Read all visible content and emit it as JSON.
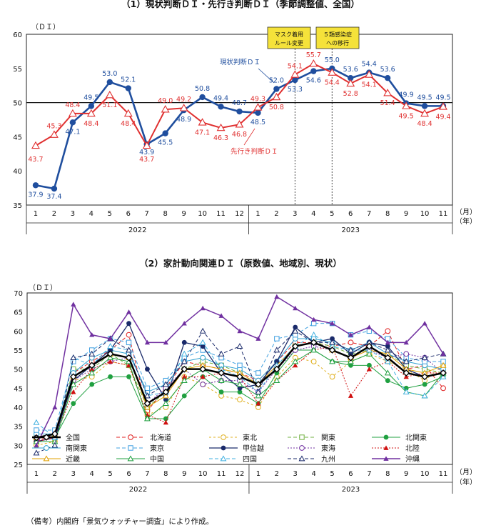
{
  "note": "（備考）内閣府「景気ウォッチャー調査」により作成。",
  "chart_data": [
    {
      "type": "line",
      "title": "（1）現状判断ＤＩ・先行き判断ＤＩ（季節調整値、全国）",
      "ylabel": "（ＤＩ）",
      "ylim": [
        35,
        60
      ],
      "yticks": [
        "35",
        "40",
        "45",
        "50",
        "55",
        "60"
      ],
      "baseline": 50,
      "categories": [
        "1",
        "2",
        "3",
        "4",
        "5",
        "6",
        "7",
        "8",
        "9",
        "10",
        "11",
        "12",
        "1",
        "2",
        "3",
        "4",
        "5",
        "6",
        "7",
        "8",
        "9",
        "10",
        "11"
      ],
      "month_unit": "（月）",
      "year_unit": "（年）",
      "years": [
        "2022",
        "2023"
      ],
      "annotations": [
        "マスク着用",
        "ルール変更",
        "５類感染症",
        "への移行"
      ],
      "series": [
        {
          "name": "現状判断ＤＩ",
          "color": "#1f4e9e",
          "values": [
            37.9,
            37.4,
            47.1,
            49.5,
            53.0,
            52.1,
            43.9,
            45.5,
            48.9,
            50.8,
            49.4,
            48.7,
            48.5,
            52.0,
            53.3,
            54.6,
            55.0,
            53.6,
            54.4,
            53.6,
            49.9,
            49.5,
            49.5
          ],
          "labels": [
            "37.9",
            "37.4",
            "47.1",
            "49.5",
            "53.0",
            "52.1",
            "43.9",
            "45.5",
            "48.9",
            "50.8",
            "49.4",
            "48.7",
            "48.5",
            "52.0",
            "53.3",
            "54.6",
            "55.0",
            "53.6",
            "54.4",
            "53.6",
            "49.9",
            "49.5",
            "49.5"
          ]
        },
        {
          "name": "先行き判断ＤＩ",
          "color": "#e03030",
          "values": [
            43.7,
            45.3,
            48.4,
            48.4,
            51.1,
            48.4,
            43.7,
            49.0,
            49.2,
            47.1,
            46.3,
            46.8,
            49.3,
            50.8,
            54.1,
            55.7,
            54.4,
            52.8,
            54.1,
            51.4,
            49.5,
            48.4,
            49.4
          ],
          "labels": [
            "43.7",
            "45.3",
            "48.4",
            "48.4",
            "51.1",
            "48.4",
            "43.7",
            "49.0",
            "49.2",
            "47.1",
            "46.3",
            "46.8",
            "49.3",
            "50.8",
            "54.1",
            "55.7",
            "54.4",
            "52.8",
            "54.1",
            "51.4",
            "49.5",
            "48.4",
            "49.4"
          ]
        }
      ]
    },
    {
      "type": "line",
      "title": "（2）家計動向関連ＤＩ（原数値、地域別、現状）",
      "ylabel": "（ＤＩ）",
      "ylim": [
        25,
        70
      ],
      "yticks": [
        "25",
        "30",
        "35",
        "40",
        "45",
        "50",
        "55",
        "60",
        "65",
        "70"
      ],
      "categories": [
        "1",
        "2",
        "3",
        "4",
        "5",
        "6",
        "7",
        "8",
        "9",
        "10",
        "11",
        "12",
        "1",
        "2",
        "3",
        "4",
        "5",
        "6",
        "7",
        "8",
        "9",
        "10",
        "11"
      ],
      "month_unit": "（月）",
      "year_unit": "（年）",
      "years": [
        "2022",
        "2023"
      ],
      "series": [
        {
          "name": "全国",
          "color": "#000000",
          "dash": "",
          "marker": "diamond",
          "width": 2.5,
          "values": [
            32,
            33,
            48,
            51,
            54,
            53,
            41,
            44,
            50,
            50,
            49,
            48,
            46,
            50,
            56,
            57,
            55,
            53,
            56,
            53,
            49,
            48,
            49
          ]
        },
        {
          "name": "北海道",
          "color": "#e02020",
          "dash": "5,3",
          "marker": "circle-open",
          "width": 1,
          "values": [
            31,
            33,
            49,
            52,
            55,
            59,
            39,
            45,
            52,
            51,
            50,
            49,
            47,
            52,
            57,
            57,
            56,
            57,
            56,
            60,
            50,
            51,
            45
          ]
        },
        {
          "name": "東北",
          "color": "#e0b020",
          "dash": "3,3",
          "marker": "circle-open",
          "width": 1,
          "values": [
            30,
            31,
            47,
            48,
            52,
            51,
            38,
            40,
            48,
            46,
            43,
            42,
            40,
            48,
            53,
            52,
            48,
            52,
            54,
            52,
            50,
            47,
            51
          ]
        },
        {
          "name": "関東",
          "color": "#70b040",
          "dash": "5,3",
          "marker": "square-open",
          "width": 1,
          "values": [
            32,
            32,
            50,
            50,
            54,
            51,
            40,
            44,
            50,
            52,
            51,
            49,
            46,
            50,
            56,
            57,
            56,
            54,
            55,
            54,
            51,
            50,
            49
          ]
        },
        {
          "name": "北関東",
          "color": "#20a040",
          "dash": "",
          "marker": "circle",
          "width": 1,
          "values": [
            31,
            32,
            41,
            46,
            48,
            48,
            37,
            37,
            43,
            48,
            44,
            44,
            41,
            49,
            55,
            55,
            52,
            51,
            51,
            47,
            45,
            46,
            48
          ]
        },
        {
          "name": "南関東",
          "color": "#30a0d0",
          "dash": "",
          "marker": "circle-open",
          "width": 1,
          "values": [
            33,
            33,
            49,
            53,
            55,
            54,
            44,
            46,
            52,
            53,
            51,
            50,
            47,
            52,
            58,
            58,
            57,
            55,
            57,
            54,
            52,
            51,
            50
          ]
        },
        {
          "name": "東京",
          "color": "#40a0e0",
          "dash": "5,3",
          "marker": "square-open",
          "width": 1,
          "values": [
            34,
            34,
            52,
            55,
            58,
            57,
            45,
            47,
            53,
            55,
            53,
            51,
            49,
            58,
            59,
            62,
            62,
            59,
            60,
            58,
            53,
            52,
            52
          ]
        },
        {
          "name": "甲信越",
          "color": "#1a2a6a",
          "dash": "",
          "marker": "circle",
          "width": 1.3,
          "values": [
            31,
            32,
            47,
            51,
            55,
            62,
            50,
            42,
            57,
            56,
            49,
            45,
            46,
            52,
            61,
            57,
            58,
            54,
            57,
            56,
            50,
            48,
            49
          ]
        },
        {
          "name": "東海",
          "color": "#7030a0",
          "dash": "2,2",
          "marker": "circle-open",
          "width": 1,
          "values": [
            32,
            33,
            47,
            50,
            52,
            53,
            41,
            45,
            50,
            46,
            47,
            47,
            44,
            50,
            55,
            56,
            55,
            53,
            55,
            53,
            54,
            53,
            49
          ]
        },
        {
          "name": "北陸",
          "color": "#d01010",
          "dash": "2,2",
          "marker": "triangle",
          "width": 1,
          "values": [
            31,
            32,
            44,
            50,
            52,
            51,
            38,
            36,
            48,
            48,
            49,
            48,
            41,
            47,
            51,
            55,
            56,
            43,
            50,
            52,
            48,
            49,
            49
          ]
        },
        {
          "name": "近畿",
          "color": "#e0a000",
          "dash": "",
          "marker": "triangle-open",
          "width": 1,
          "values": [
            32,
            33,
            48,
            51,
            54,
            53,
            40,
            43,
            50,
            51,
            50,
            49,
            46,
            51,
            56,
            57,
            55,
            53,
            55,
            54,
            50,
            49,
            51
          ]
        },
        {
          "name": "中国",
          "color": "#20a040",
          "dash": "",
          "marker": "triangle-open",
          "width": 1,
          "values": [
            31,
            31,
            46,
            49,
            53,
            52,
            37,
            41,
            47,
            50,
            47,
            46,
            43,
            47,
            52,
            55,
            52,
            52,
            54,
            49,
            44,
            43,
            49
          ]
        },
        {
          "name": "四国",
          "color": "#40b0e0",
          "dash": "5,3",
          "marker": "triangle-open",
          "width": 1,
          "values": [
            36,
            32,
            53,
            51,
            56,
            55,
            43,
            44,
            54,
            57,
            50,
            48,
            44,
            51,
            56,
            59,
            56,
            55,
            55,
            52,
            44,
            43,
            48
          ]
        },
        {
          "name": "九州",
          "color": "#1a2a6a",
          "dash": "5,3",
          "marker": "triangle-open",
          "width": 1,
          "values": [
            28,
            30,
            53,
            54,
            58,
            55,
            43,
            46,
            52,
            60,
            54,
            56,
            44,
            55,
            60,
            57,
            57,
            55,
            57,
            55,
            52,
            53,
            54
          ]
        },
        {
          "name": "沖縄",
          "color": "#7030a0",
          "dash": "",
          "marker": "triangle",
          "width": 1.5,
          "values": [
            30,
            40,
            67,
            59,
            58,
            65,
            57,
            57,
            62,
            66,
            64,
            60,
            58,
            69,
            66,
            63,
            62,
            59,
            61,
            57,
            57,
            62,
            54
          ]
        }
      ]
    }
  ]
}
